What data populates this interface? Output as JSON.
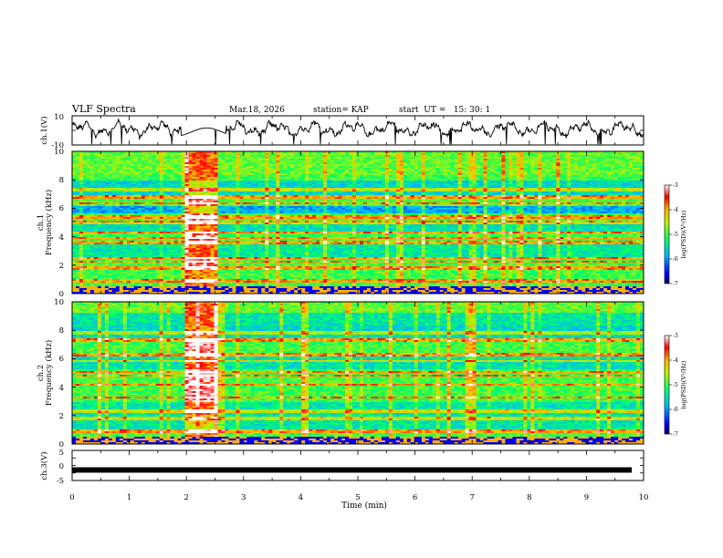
{
  "header": {
    "title": "VLF Spectra",
    "date": "Mar.18, 2026",
    "station": "station= KAP",
    "start_time": "start  UT =   15: 30: 1"
  },
  "chart_data": [
    {
      "type": "line",
      "name": "ch1-waveform",
      "ylabel": "ch.1(V)",
      "ylim": [
        -10,
        10
      ],
      "yticks": [
        "10",
        "-10"
      ],
      "xlim": [
        0,
        10
      ],
      "series": [
        {
          "name": "ch.1 voltage",
          "baseline": 1,
          "amplitude": 6
        }
      ]
    },
    {
      "type": "heatmap",
      "name": "ch1-spectrogram",
      "ylabel": "ch.1\nFrequency (kHz)",
      "ylabel_line1": "ch.1",
      "ylabel_line2": "Frequency (kHz)",
      "ylim": [
        0,
        10
      ],
      "yticks": [
        "0",
        "2",
        "4",
        "6",
        "8",
        "10"
      ],
      "xlim": [
        0,
        10
      ],
      "burst_interval_min": [
        1.95,
        2.55
      ],
      "colorbar": {
        "label": "log(PSD)(V²/Hz)",
        "range": [
          -7,
          -3
        ],
        "ticks": [
          "-3",
          "-4",
          "-5",
          "-6",
          "-7"
        ]
      },
      "strong_lines_khz": [
        0.3,
        0.9,
        1.8,
        2.25,
        2.5,
        3.6,
        3.9,
        4.3,
        5.0,
        5.4,
        6.3,
        6.8,
        7.3
      ]
    },
    {
      "type": "heatmap",
      "name": "ch2-spectrogram",
      "ylabel": "ch.2\nFrequency (kHz)",
      "ylabel_line1": "ch.2",
      "ylabel_line2": "Frequency (kHz)",
      "ylim": [
        0,
        10
      ],
      "yticks": [
        "0",
        "2",
        "4",
        "6",
        "8",
        "10"
      ],
      "xlim": [
        0,
        10
      ],
      "burst_interval_min": [
        1.95,
        2.55
      ],
      "colorbar": {
        "label": "log(PSD)(V²/Hz)",
        "range": [
          -7,
          -3
        ],
        "ticks": [
          "-3",
          "-4",
          "-5",
          "-6",
          "-7"
        ]
      },
      "strong_lines_khz": [
        0.3,
        0.9,
        1.8,
        2.3,
        3.3,
        4.2,
        4.8,
        5.1,
        5.8,
        6.3,
        7.3,
        7.8
      ]
    },
    {
      "type": "line",
      "name": "ch3-signal",
      "ylabel": "ch.3(V)",
      "ylim": [
        -5,
        5
      ],
      "yticks": [
        "5",
        "0",
        "-5"
      ],
      "xlim": [
        0,
        10
      ],
      "series": [
        {
          "name": "ch.3 voltage",
          "baseline": -1.5,
          "amplitude": 0.3
        }
      ]
    }
  ],
  "xaxis": {
    "label": "Time (min)",
    "ticks": [
      "0",
      "1",
      "2",
      "3",
      "4",
      "5",
      "6",
      "7",
      "8",
      "9",
      "10"
    ],
    "range": [
      0,
      10
    ]
  }
}
